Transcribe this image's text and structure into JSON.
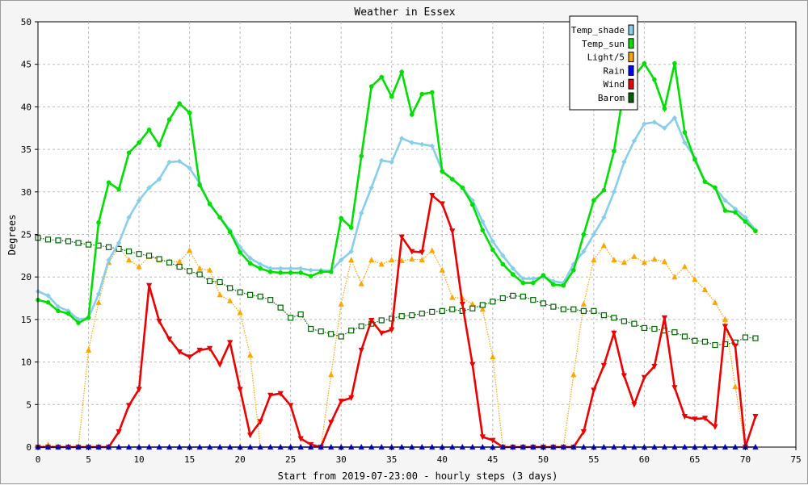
{
  "chart_data": {
    "type": "line",
    "title": "Weather in Essex",
    "xlabel": "Start from 2019-07-23:00 - hourly steps (3 days)",
    "ylabel": "Degrees",
    "xlim": [
      0,
      75
    ],
    "ylim": [
      0,
      50
    ],
    "xticks": [
      0,
      5,
      10,
      15,
      20,
      25,
      30,
      35,
      40,
      45,
      50,
      55,
      60,
      65,
      70,
      75
    ],
    "yticks": [
      0,
      5,
      10,
      15,
      20,
      25,
      30,
      35,
      40,
      45,
      50
    ],
    "grid": true,
    "legend_position": "top-right",
    "series": [
      {
        "name": "Temp_shade",
        "color": "#87CEEB",
        "style": "solid",
        "marker": "diamond",
        "x": [
          0,
          1,
          2,
          3,
          4,
          5,
          6,
          7,
          8,
          9,
          10,
          11,
          12,
          13,
          14,
          15,
          16,
          17,
          18,
          19,
          20,
          21,
          22,
          23,
          24,
          25,
          26,
          27,
          28,
          29,
          30,
          31,
          32,
          33,
          34,
          35,
          36,
          37,
          38,
          39,
          40,
          41,
          42,
          43,
          44,
          45,
          46,
          47,
          48,
          49,
          50,
          51,
          52,
          53,
          54,
          55,
          56,
          57,
          58,
          59,
          60,
          61,
          62,
          63,
          64,
          65,
          66,
          67,
          68,
          69,
          70,
          71
        ],
        "values": [
          18.3,
          17.8,
          16.5,
          16,
          15,
          15.2,
          18,
          22,
          24,
          27,
          29,
          30.5,
          31.5,
          33.5,
          33.6,
          32.8,
          31,
          28.5,
          27,
          25.5,
          23.5,
          22.2,
          21.5,
          21,
          21,
          21,
          21,
          20.8,
          20.8,
          20.7,
          22,
          23,
          27.5,
          30.5,
          33.7,
          33.5,
          36.3,
          35.8,
          35.6,
          35.4,
          32.5,
          31.5,
          30.5,
          29,
          26.5,
          24.2,
          22.5,
          21,
          19.8,
          19.8,
          20,
          19.5,
          19.3,
          21.5,
          23,
          25,
          27,
          30,
          33.5,
          36,
          38,
          38.2,
          37.5,
          38.7,
          35.8,
          34,
          31.2,
          30.5,
          29,
          28,
          27,
          25.5
        ]
      },
      {
        "name": "Temp_sun",
        "color": "#00E000",
        "style": "solid",
        "marker": "circle",
        "x": [
          0,
          1,
          2,
          3,
          4,
          5,
          6,
          7,
          8,
          9,
          10,
          11,
          12,
          13,
          14,
          15,
          16,
          17,
          18,
          19,
          20,
          21,
          22,
          23,
          24,
          25,
          26,
          27,
          28,
          29,
          30,
          31,
          32,
          33,
          34,
          35,
          36,
          37,
          38,
          39,
          40,
          41,
          42,
          43,
          44,
          45,
          46,
          47,
          48,
          49,
          50,
          51,
          52,
          53,
          54,
          55,
          56,
          57,
          58,
          59,
          60,
          61,
          62,
          63,
          64,
          65,
          66,
          67,
          68,
          69,
          70,
          71
        ],
        "values": [
          17.3,
          17,
          16,
          15.7,
          14.6,
          15.2,
          26.4,
          31.1,
          30.3,
          34.6,
          35.8,
          37.3,
          35.5,
          38.5,
          40.4,
          39.3,
          30.8,
          28.6,
          27,
          25.3,
          22.9,
          21.6,
          21,
          20.6,
          20.5,
          20.5,
          20.5,
          20.1,
          20.6,
          20.6,
          26.9,
          25.8,
          34.2,
          42.4,
          43.5,
          41.2,
          44.1,
          39.1,
          41.5,
          41.7,
          32.4,
          31.5,
          30.5,
          28.5,
          25.5,
          23.2,
          21.5,
          20.3,
          19.3,
          19.3,
          20.2,
          19.1,
          19,
          20.8,
          25,
          29,
          30.2,
          34.8,
          42.1,
          43.6,
          45.1,
          43.2,
          39.8,
          45.1,
          37,
          33.8,
          31.2,
          30.5,
          27.8,
          27.6,
          26.5,
          25.4
        ]
      },
      {
        "name": "Light/5",
        "color": "#FFA500",
        "style": "dotted",
        "marker": "triangle-up",
        "x": [
          0,
          1,
          2,
          3,
          4,
          5,
          6,
          7,
          8,
          9,
          10,
          11,
          12,
          13,
          14,
          15,
          16,
          17,
          18,
          19,
          20,
          21,
          22,
          23,
          24,
          25,
          26,
          27,
          28,
          29,
          30,
          31,
          32,
          33,
          34,
          35,
          36,
          37,
          38,
          39,
          40,
          41,
          42,
          43,
          44,
          45,
          46,
          47,
          48,
          49,
          50,
          51,
          52,
          53,
          54,
          55,
          56,
          57,
          58,
          59,
          60,
          61,
          62,
          63,
          64,
          65,
          66,
          67,
          68,
          69,
          70,
          71
        ],
        "values": [
          0,
          0.3,
          0,
          0,
          0,
          11.4,
          17,
          21.7,
          23.5,
          22,
          21.2,
          22.4,
          22,
          21.8,
          21.8,
          23.1,
          21,
          20.8,
          17.9,
          17.2,
          15.8,
          10.8,
          0,
          0,
          0,
          0,
          0,
          0,
          0,
          8.5,
          16.8,
          22,
          19.2,
          22,
          21.5,
          22,
          21.9,
          22.1,
          22,
          23.1,
          20.8,
          17.6,
          17.5,
          16.8,
          16.2,
          10.6,
          0,
          0,
          0,
          0,
          0,
          0,
          0,
          8.5,
          16.8,
          22,
          23.7,
          22,
          21.7,
          22.4,
          21.7,
          22.1,
          21.8,
          20,
          21.2,
          19.7,
          18.5,
          17,
          15,
          7.1,
          0,
          0
        ]
      },
      {
        "name": "Rain",
        "color": "#0000FF",
        "style": "solid",
        "marker": "triangle-up",
        "x": [
          0,
          1,
          2,
          3,
          4,
          5,
          6,
          7,
          8,
          9,
          10,
          11,
          12,
          13,
          14,
          15,
          16,
          17,
          18,
          19,
          20,
          21,
          22,
          23,
          24,
          25,
          26,
          27,
          28,
          29,
          30,
          31,
          32,
          33,
          34,
          35,
          36,
          37,
          38,
          39,
          40,
          41,
          42,
          43,
          44,
          45,
          46,
          47,
          48,
          49,
          50,
          51,
          52,
          53,
          54,
          55,
          56,
          57,
          58,
          59,
          60,
          61,
          62,
          63,
          64,
          65,
          66,
          67,
          68,
          69,
          70,
          71
        ],
        "values": [
          0,
          0,
          0,
          0,
          0,
          0,
          0,
          0,
          0,
          0,
          0,
          0,
          0,
          0,
          0,
          0,
          0,
          0,
          0,
          0,
          0,
          0,
          0,
          0,
          0,
          0,
          0,
          0,
          0,
          0,
          0,
          0,
          0,
          0,
          0,
          0,
          0,
          0,
          0,
          0,
          0,
          0,
          0,
          0,
          0,
          0,
          0,
          0,
          0,
          0,
          0,
          0,
          0,
          0,
          0,
          0,
          0,
          0,
          0,
          0,
          0,
          0,
          0,
          0,
          0,
          0,
          0,
          0,
          0,
          0,
          0,
          0
        ]
      },
      {
        "name": "Wind",
        "color": "#EE0000",
        "style": "solid",
        "marker": "triangle-down",
        "x": [
          0,
          1,
          2,
          3,
          4,
          5,
          6,
          7,
          8,
          9,
          10,
          11,
          12,
          13,
          14,
          15,
          16,
          17,
          18,
          19,
          20,
          21,
          22,
          23,
          24,
          25,
          26,
          27,
          28,
          29,
          30,
          31,
          32,
          33,
          34,
          35,
          36,
          37,
          38,
          39,
          40,
          41,
          42,
          43,
          44,
          45,
          46,
          47,
          48,
          49,
          50,
          51,
          52,
          53,
          54,
          55,
          56,
          57,
          58,
          59,
          60,
          61,
          62,
          63,
          64,
          65,
          66,
          67,
          68,
          69,
          70,
          71
        ],
        "values": [
          0,
          0,
          0,
          0,
          0,
          0,
          0,
          0,
          1.8,
          4.9,
          6.8,
          19,
          14.8,
          12.7,
          11.2,
          10.6,
          11.4,
          11.6,
          9.7,
          12.3,
          6.8,
          1.4,
          3,
          6.1,
          6.3,
          4.9,
          1,
          0.3,
          0,
          2.9,
          5.4,
          5.8,
          11.4,
          14.9,
          13.4,
          13.8,
          24.7,
          23,
          22.9,
          29.6,
          28.6,
          25.4,
          16.8,
          9.7,
          1.2,
          0.8,
          0,
          0,
          0,
          0,
          0,
          0,
          0,
          0,
          1.8,
          6.7,
          9.6,
          13.4,
          8.4,
          5,
          8.2,
          9.5,
          15.2,
          7,
          3.6,
          3.3,
          3.4,
          2.4,
          14.2,
          11.9,
          0,
          3.6
        ]
      },
      {
        "name": "Barom",
        "color": "#006400",
        "style": "dotted",
        "marker": "square-open",
        "x": [
          0,
          1,
          2,
          3,
          4,
          5,
          6,
          7,
          8,
          9,
          10,
          11,
          12,
          13,
          14,
          15,
          16,
          17,
          18,
          19,
          20,
          21,
          22,
          23,
          24,
          25,
          26,
          27,
          28,
          29,
          30,
          31,
          32,
          33,
          34,
          35,
          36,
          37,
          38,
          39,
          40,
          41,
          42,
          43,
          44,
          45,
          46,
          47,
          48,
          49,
          50,
          51,
          52,
          53,
          54,
          55,
          56,
          57,
          58,
          59,
          60,
          61,
          62,
          63,
          64,
          65,
          66,
          67,
          68,
          69,
          70,
          71
        ],
        "values": [
          24.6,
          24.4,
          24.3,
          24.2,
          24,
          23.8,
          23.7,
          23.5,
          23.3,
          23,
          22.7,
          22.5,
          22.1,
          21.7,
          21.2,
          20.7,
          20.3,
          19.5,
          19.4,
          18.7,
          18.2,
          17.9,
          17.7,
          17.3,
          16.4,
          15.2,
          15.6,
          13.9,
          13.6,
          13.3,
          13,
          13.7,
          14.2,
          14.5,
          14.9,
          15.1,
          15.4,
          15.5,
          15.7,
          15.9,
          16,
          16.2,
          16,
          16.3,
          16.7,
          17.1,
          17.5,
          17.8,
          17.7,
          17.3,
          16.9,
          16.5,
          16.2,
          16.2,
          16,
          16,
          15.5,
          15.2,
          14.8,
          14.5,
          14,
          13.9,
          13.7,
          13.5,
          13,
          12.5,
          12.4,
          12,
          12.1,
          12.3,
          12.9,
          12.8
        ]
      }
    ]
  }
}
